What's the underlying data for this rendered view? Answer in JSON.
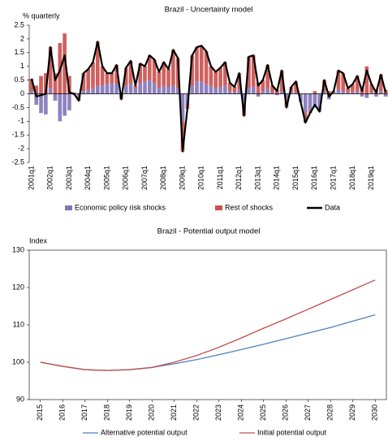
{
  "chart_data": [
    {
      "type": "bar",
      "title": "Brazil - Uncertainty model",
      "ylabel": "% quarterly",
      "categories": [
        "2001q1",
        null,
        null,
        null,
        "2002q1",
        null,
        null,
        null,
        "2003q1",
        null,
        null,
        null,
        "2004q1",
        null,
        null,
        null,
        "2005q1",
        null,
        null,
        null,
        "2006q1",
        null,
        null,
        null,
        "2007q1",
        null,
        null,
        null,
        "2008q1",
        null,
        null,
        null,
        "2009q1",
        null,
        null,
        null,
        "2010q1",
        null,
        null,
        null,
        "2011q1",
        null,
        null,
        null,
        "2012q1",
        null,
        null,
        null,
        "2013q1",
        null,
        null,
        null,
        "2014q1",
        null,
        null,
        null,
        "2015q1",
        null,
        null,
        null,
        "2016q1",
        null,
        null,
        null,
        "2017q1",
        null,
        null,
        null,
        "2018q1",
        null,
        null,
        null,
        "2019q1",
        null,
        null,
        null
      ],
      "series": [
        {
          "name": "Economic policy risk shocks",
          "type": "bar",
          "color": "#8274b8",
          "values": [
            0.1,
            -0.4,
            -0.7,
            -0.75,
            0.2,
            -0.25,
            -1.0,
            -0.8,
            -0.6,
            0.05,
            -0.2,
            0.1,
            0.15,
            0.2,
            0.3,
            0.3,
            0.35,
            0.4,
            0.35,
            -0.1,
            0.3,
            0.35,
            0.2,
            0.4,
            0.45,
            0.5,
            0.4,
            0.2,
            0.3,
            0.25,
            0.3,
            0.2,
            -1.0,
            -0.4,
            0.3,
            0.45,
            0.45,
            0.35,
            0.3,
            0.2,
            0.25,
            0.3,
            0.1,
            0.05,
            0.15,
            -0.3,
            0.2,
            0.25,
            -0.1,
            0.1,
            0.2,
            0.05,
            -0.05,
            0.1,
            -0.2,
            0.05,
            0.05,
            -0.3,
            -0.7,
            -0.6,
            -0.5,
            -0.6,
            0.1,
            -0.2,
            0.05,
            0.15,
            0.1,
            0.05,
            0.05,
            0.1,
            -0.1,
            -0.15,
            0.05,
            -0.1,
            0.1,
            -0.1
          ]
        },
        {
          "name": "Rest of shocks",
          "type": "bar",
          "color": "#c9504c",
          "values": [
            0.45,
            0.3,
            0.65,
            0.75,
            1.5,
            0.75,
            1.85,
            2.2,
            0.65,
            -0.05,
            -0.05,
            0.65,
            0.75,
            0.95,
            1.6,
            0.7,
            0.4,
            0.35,
            0.7,
            -0.1,
            0.65,
            0.85,
            0.1,
            0.7,
            0.55,
            0.9,
            0.85,
            0.6,
            0.85,
            0.65,
            1.3,
            1.1,
            -1.1,
            -0.15,
            1.1,
            1.25,
            1.3,
            1.2,
            0.7,
            0.6,
            0.7,
            0.85,
            0.3,
            0.2,
            0.6,
            -0.5,
            1.15,
            1.15,
            0.4,
            0.4,
            0.85,
            0.25,
            0.15,
            0.75,
            -0.3,
            0.2,
            0.4,
            0.0,
            -0.35,
            -0.1,
            0.1,
            -0.05,
            0.4,
            0.1,
            0.05,
            0.7,
            0.65,
            0.15,
            0.3,
            0.55,
            0.2,
            1.0,
            0.3,
            0.15,
            0.6,
            0.15
          ]
        },
        {
          "name": "Data",
          "type": "line",
          "color": "#000000",
          "values": [
            0.55,
            -0.1,
            -0.05,
            0.0,
            1.7,
            0.5,
            0.85,
            1.4,
            0.05,
            0.0,
            -0.25,
            0.75,
            0.9,
            1.15,
            1.9,
            1.0,
            0.75,
            0.75,
            1.05,
            -0.2,
            0.95,
            1.2,
            0.3,
            1.1,
            1.0,
            1.4,
            1.25,
            0.8,
            1.15,
            0.9,
            1.6,
            1.3,
            -2.1,
            -0.55,
            1.4,
            1.7,
            1.75,
            1.55,
            1.0,
            0.8,
            0.95,
            1.15,
            0.4,
            0.25,
            0.75,
            -0.8,
            1.35,
            1.4,
            0.3,
            0.5,
            1.05,
            0.3,
            0.1,
            0.85,
            -0.5,
            0.25,
            0.45,
            -0.3,
            -1.05,
            -0.7,
            -0.4,
            -0.65,
            0.5,
            -0.1,
            0.1,
            0.85,
            0.75,
            0.2,
            0.35,
            0.65,
            0.1,
            0.85,
            0.35,
            0.05,
            0.7,
            0.05
          ]
        }
      ],
      "ylim": [
        -2.5,
        2.5
      ],
      "yticks": [
        -2.5,
        -2,
        -1.5,
        -1,
        -0.5,
        0,
        0.5,
        1,
        1.5,
        2,
        2.5
      ],
      "grid": false,
      "stacked": true,
      "legend": "bottom"
    },
    {
      "type": "line",
      "title": "Brazil - Potential output model",
      "ylabel": "Index",
      "x": [
        2015,
        2016,
        2017,
        2018,
        2019,
        2020,
        2021,
        2022,
        2023,
        2024,
        2025,
        2026,
        2027,
        2028,
        2029,
        2030
      ],
      "series": [
        {
          "name": "Alternative potential output",
          "color": "#4f81bd",
          "values": [
            100,
            98.9,
            98.0,
            97.8,
            98.0,
            98.6,
            99.6,
            100.7,
            102.0,
            103.4,
            104.8,
            106.3,
            107.8,
            109.3,
            111.0,
            112.7
          ]
        },
        {
          "name": "Initial potential output",
          "color": "#c0504d",
          "values": [
            100,
            98.9,
            98.0,
            97.8,
            98.0,
            98.6,
            100.0,
            101.8,
            104.0,
            106.5,
            109.1,
            111.6,
            114.2,
            116.8,
            119.4,
            122.0
          ]
        }
      ],
      "xlim": [
        2014.5,
        2030.5
      ],
      "xticks": [
        2015,
        2016,
        2017,
        2018,
        2019,
        2020,
        2021,
        2022,
        2023,
        2024,
        2025,
        2026,
        2027,
        2028,
        2029,
        2030
      ],
      "ylim": [
        90,
        130
      ],
      "yticks": [
        90,
        100,
        110,
        120,
        130
      ],
      "grid": false,
      "legend": "bottom"
    }
  ]
}
